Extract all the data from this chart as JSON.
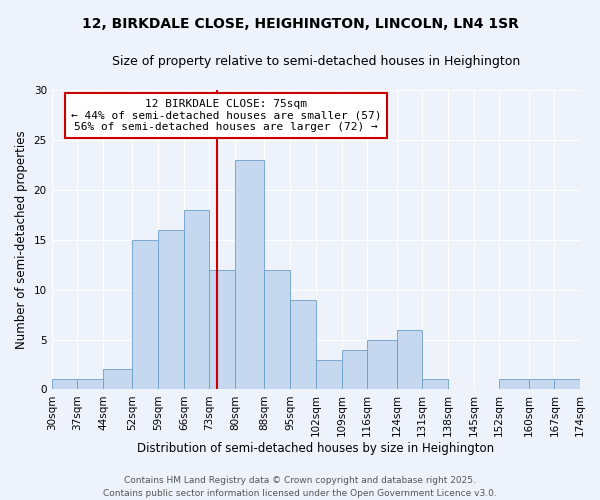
{
  "title": "12, BIRKDALE CLOSE, HEIGHINGTON, LINCOLN, LN4 1SR",
  "subtitle": "Size of property relative to semi-detached houses in Heighington",
  "xlabel": "Distribution of semi-detached houses by size in Heighington",
  "ylabel": "Number of semi-detached properties",
  "bin_labels": [
    "30sqm",
    "37sqm",
    "44sqm",
    "52sqm",
    "59sqm",
    "66sqm",
    "73sqm",
    "80sqm",
    "88sqm",
    "95sqm",
    "102sqm",
    "109sqm",
    "116sqm",
    "124sqm",
    "131sqm",
    "138sqm",
    "145sqm",
    "152sqm",
    "160sqm",
    "167sqm",
    "174sqm"
  ],
  "bin_edges": [
    30,
    37,
    44,
    52,
    59,
    66,
    73,
    80,
    88,
    95,
    102,
    109,
    116,
    124,
    131,
    138,
    145,
    152,
    160,
    167,
    174
  ],
  "bar_heights": [
    1,
    1,
    2,
    15,
    16,
    18,
    12,
    23,
    12,
    9,
    3,
    4,
    5,
    6,
    1,
    0,
    0,
    1,
    1,
    1
  ],
  "bar_color": "#c5d8f0",
  "bar_edge_color": "#6a9ec7",
  "vertical_line_x": 75,
  "vertical_line_color": "#cc0000",
  "annotation_title": "12 BIRKDALE CLOSE: 75sqm",
  "annotation_line1": "← 44% of semi-detached houses are smaller (57)",
  "annotation_line2": "56% of semi-detached houses are larger (72) →",
  "annotation_box_color": "#ffffff",
  "annotation_box_edge": "#cc0000",
  "ylim": [
    0,
    30
  ],
  "yticks": [
    0,
    5,
    10,
    15,
    20,
    25,
    30
  ],
  "background_color": "#eef2fa",
  "footer_line1": "Contains HM Land Registry data © Crown copyright and database right 2025.",
  "footer_line2": "Contains public sector information licensed under the Open Government Licence v3.0.",
  "title_fontsize": 10,
  "subtitle_fontsize": 9,
  "axis_label_fontsize": 8.5,
  "tick_fontsize": 7.5,
  "annotation_fontsize": 8,
  "footer_fontsize": 6.5
}
